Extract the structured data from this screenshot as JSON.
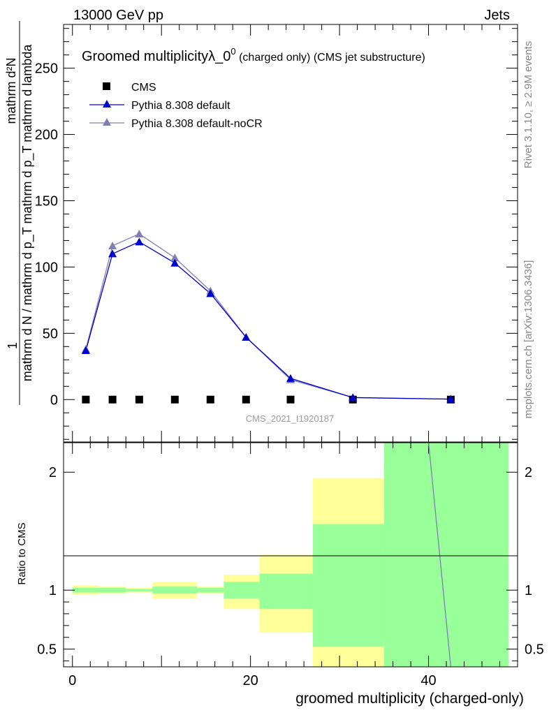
{
  "header": {
    "left": "13000 GeV pp",
    "right": "Jets"
  },
  "side_labels": {
    "rivet": "Rivet 3.1.10, ≥ 2.9M events",
    "source": "mcplots.cern.ch [arXiv:1306.3436]"
  },
  "chart_data": [
    {
      "type": "line",
      "title_main": "Groomed multiplicityλ_0",
      "title_sup": "0",
      "title_suffix": " (charged only) (CMS jet substructure)",
      "analysis_id": "CMS_2021_I1920187",
      "ylabel_top": "1",
      "ylabel_frac": "mathrm d N / mathrm d p_T mathrm d p_T mathrm d lambda",
      "ylabel_num": "mathrm d²N",
      "xlim": [
        -1,
        50
      ],
      "ylim": [
        -32,
        283
      ],
      "yticks": [
        0,
        50,
        100,
        150,
        200,
        250
      ],
      "legend_position": "top-left",
      "series": [
        {
          "name": "CMS",
          "marker": "square",
          "color": "#000000",
          "x": [
            1.5,
            4.5,
            7.5,
            11.5,
            15.5,
            19.5,
            24.5,
            31.5,
            42.5
          ],
          "y": [
            0,
            0,
            0,
            0,
            0,
            0,
            0,
            0,
            0
          ]
        },
        {
          "name": "Pythia 8.308 default",
          "marker": "triangle",
          "color": "#0000cc",
          "x": [
            1.5,
            4.5,
            7.5,
            11.5,
            15.5,
            19.5,
            24.5,
            31.5,
            42.5
          ],
          "y": [
            37,
            110,
            119,
            103,
            80,
            47,
            16,
            1.5,
            0.3
          ]
        },
        {
          "name": "Pythia 8.308 default-noCR",
          "marker": "triangle",
          "color": "#7f7fb2",
          "x": [
            1.5,
            4.5,
            7.5,
            11.5,
            15.5,
            19.5,
            24.5,
            31.5,
            42.5
          ],
          "y": [
            38,
            116,
            125,
            107,
            82,
            47,
            15,
            1.5,
            0.4
          ]
        }
      ]
    },
    {
      "type": "area",
      "ylabel": "Ratio to CMS",
      "xlabel": "groomed multiplicity (charged-only)",
      "xlim": [
        -1,
        50
      ],
      "ylim": [
        0.35,
        2.25
      ],
      "xticks": [
        0,
        20,
        40
      ],
      "yticks": [
        0.5,
        1,
        2
      ],
      "ytick_labels": [
        "0.5",
        "1",
        "2"
      ],
      "bins": [
        {
          "lo": 0,
          "hi": 3,
          "stat_lo": 0.98,
          "stat_hi": 1.02,
          "tot_lo": 0.96,
          "tot_hi": 1.04
        },
        {
          "lo": 3,
          "hi": 6,
          "stat_lo": 0.98,
          "stat_hi": 1.02,
          "tot_lo": 0.97,
          "tot_hi": 1.03
        },
        {
          "lo": 6,
          "hi": 9,
          "stat_lo": 0.99,
          "stat_hi": 1.01,
          "tot_lo": 0.98,
          "tot_hi": 1.02
        },
        {
          "lo": 9,
          "hi": 14,
          "stat_lo": 0.97,
          "stat_hi": 1.03,
          "tot_lo": 0.93,
          "tot_hi": 1.07
        },
        {
          "lo": 14,
          "hi": 17,
          "stat_lo": 0.98,
          "stat_hi": 1.02,
          "tot_lo": 0.97,
          "tot_hi": 1.03
        },
        {
          "lo": 17,
          "hi": 21,
          "stat_lo": 0.93,
          "stat_hi": 1.07,
          "tot_lo": 0.84,
          "tot_hi": 1.13
        },
        {
          "lo": 21,
          "hi": 27,
          "stat_lo": 0.84,
          "stat_hi": 1.14,
          "tot_lo": 0.64,
          "tot_hi": 1.3
        },
        {
          "lo": 27,
          "hi": 35,
          "stat_lo": 0.52,
          "stat_hi": 1.56,
          "tot_lo": 0.35,
          "tot_hi": 1.95
        },
        {
          "lo": 35,
          "hi": 49,
          "stat_lo": 0.35,
          "stat_hi": 2.25,
          "tot_lo": 0.35,
          "tot_hi": 2.25
        }
      ],
      "stat_color": "#99ff99",
      "total_color": "#ffff99",
      "series": [
        {
          "color": "#7f7fb2",
          "x": [
            40,
            42.5
          ],
          "y": [
            2.25,
            0.35
          ]
        }
      ]
    }
  ]
}
